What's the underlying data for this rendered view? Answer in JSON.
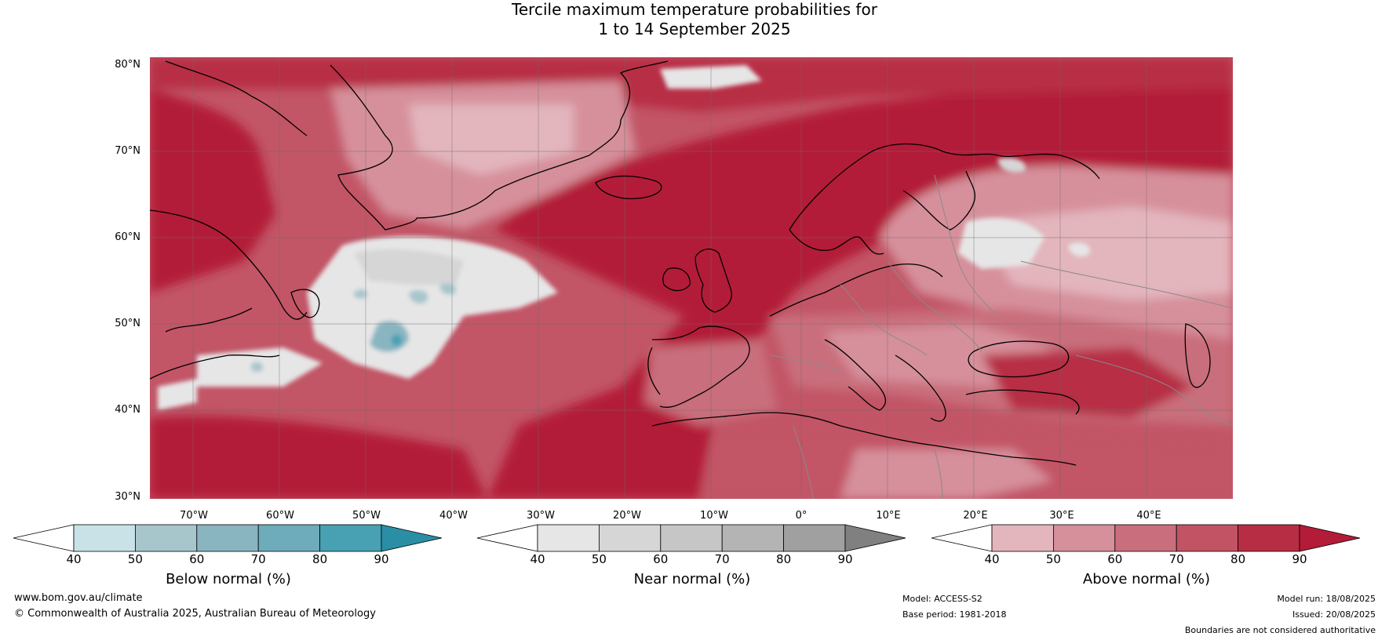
{
  "title": {
    "line1": "Tercile maximum temperature probabilities for",
    "line2": "1 to 14 September 2025"
  },
  "map": {
    "lat_labels": [
      "80°N",
      "70°N",
      "60°N",
      "50°N",
      "40°N",
      "30°N"
    ],
    "lon_labels": [
      "70°W",
      "60°W",
      "50°W",
      "40°W",
      "30°W",
      "20°W",
      "10°W",
      "0°",
      "10°E",
      "20°E",
      "30°E",
      "40°E"
    ],
    "regions_shown": "North Atlantic, Greenland, eastern Canada, Europe, Mediterranean"
  },
  "colorbars": [
    {
      "title": "Below normal (%)",
      "ticks": [
        "40",
        "50",
        "60",
        "70",
        "80",
        "90"
      ],
      "colors": [
        "#ffffff",
        "#c9e2e8",
        "#a7c6cc",
        "#89b5c1",
        "#6eabbb",
        "#47a1b2",
        "#2a8ea5"
      ]
    },
    {
      "title": "Near normal (%)",
      "ticks": [
        "40",
        "50",
        "60",
        "70",
        "80",
        "90"
      ],
      "colors": [
        "#ffffff",
        "#e6e6e6",
        "#d6d6d6",
        "#c6c6c6",
        "#b4b4b4",
        "#a0a0a0",
        "#808080"
      ]
    },
    {
      "title": "Above normal (%)",
      "ticks": [
        "40",
        "50",
        "60",
        "70",
        "80",
        "90"
      ],
      "colors": [
        "#ffffff",
        "#e3b5bd",
        "#d6909b",
        "#c96e7c",
        "#c15364",
        "#b72e44",
        "#b31b38"
      ]
    }
  ],
  "footer": {
    "website": "www.bom.gov.au/climate",
    "copyright": "© Commonwealth of Australia 2025, Australian Bureau of Meteorology",
    "model": "Model: ACCESS-S2",
    "base_period": "Base period: 1981-2018",
    "model_run": "Model run: 18/08/2025",
    "issued": "Issued: 20/08/2025",
    "disclaimer": "Boundaries are not considered authoritative"
  }
}
